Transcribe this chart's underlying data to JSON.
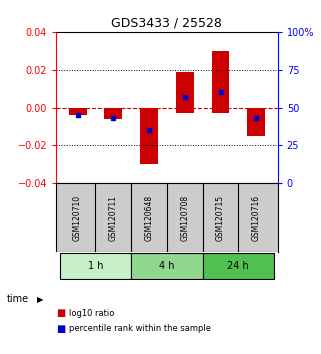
{
  "title": "GDS3433 / 25528",
  "samples": [
    "GSM120710",
    "GSM120711",
    "GSM120648",
    "GSM120708",
    "GSM120715",
    "GSM120716"
  ],
  "groups": [
    {
      "label": "1 h",
      "indices": [
        0,
        1
      ],
      "color": "#c8f0c8"
    },
    {
      "label": "4 h",
      "indices": [
        2,
        3
      ],
      "color": "#90d890"
    },
    {
      "label": "24 h",
      "indices": [
        4,
        5
      ],
      "color": "#50c050"
    }
  ],
  "log10_ratio": [
    -0.004,
    -0.006,
    -0.03,
    0.019,
    0.03,
    -0.015
  ],
  "log10_ratio_bottom": [
    0.0,
    0.0,
    0.0,
    -0.003,
    -0.003,
    0.0
  ],
  "percentile": [
    45,
    43,
    35,
    57,
    60,
    43
  ],
  "ylim_left": [
    -0.04,
    0.04
  ],
  "ylim_right": [
    0,
    100
  ],
  "yticks_left": [
    -0.04,
    -0.02,
    0,
    0.02,
    0.04
  ],
  "yticks_right": [
    0,
    25,
    50,
    75,
    100
  ],
  "bar_color": "#cc0000",
  "dot_color": "#0000cc",
  "zero_line_color": "#cc0000",
  "grid_color": "#000000",
  "bg_color": "#ffffff",
  "legend_red": "log10 ratio",
  "legend_blue": "percentile rank within the sample",
  "time_label": "time",
  "sample_area_bg": "#cccccc"
}
